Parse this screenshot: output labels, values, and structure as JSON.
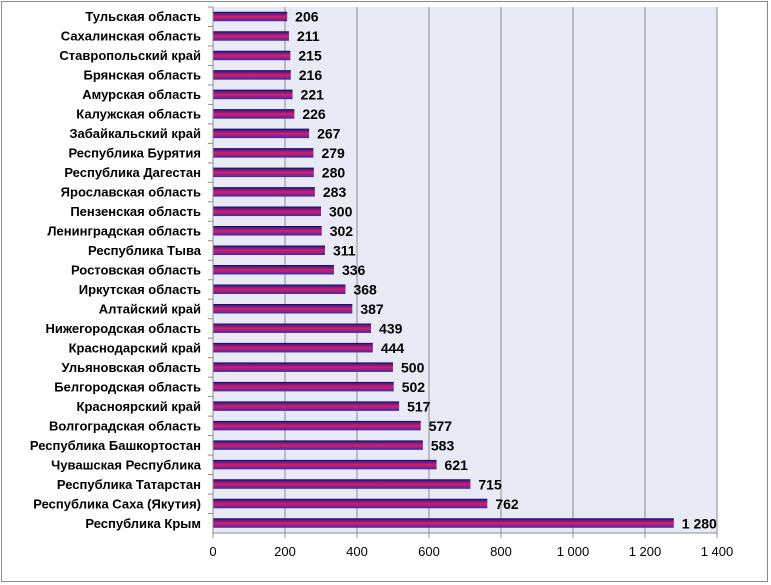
{
  "chart_data": {
    "type": "bar",
    "orientation": "horizontal",
    "title": "",
    "xlabel": "",
    "ylabel": "",
    "categories": [
      "Тульская область",
      "Сахалинская область",
      "Ставропольский край",
      "Брянская область",
      "Амурская область",
      "Калужская область",
      "Забайкальский край",
      "Республика Бурятия",
      "Республика Дагестан",
      "Ярославская область",
      "Пензенская область",
      "Ленинградская область",
      "Республика Тыва",
      "Ростовская область",
      "Иркутская область",
      "Алтайский край",
      "Нижегородская область",
      "Краснодарский край",
      "Ульяновская область",
      "Белгородская область",
      "Красноярский край",
      "Волгоградская область",
      "Республика Башкортостан",
      "Чувашская Республика",
      "Республика Татарстан",
      "Республика Саха (Якутия)",
      "Республика Крым"
    ],
    "values": [
      206,
      211,
      215,
      216,
      221,
      226,
      267,
      279,
      280,
      283,
      300,
      302,
      311,
      336,
      368,
      387,
      439,
      444,
      500,
      502,
      517,
      577,
      583,
      621,
      715,
      762,
      1280
    ],
    "value_labels": [
      "206",
      "211",
      "215",
      "216",
      "221",
      "226",
      "267",
      "279",
      "280",
      "283",
      "300",
      "302",
      "311",
      "336",
      "368",
      "387",
      "439",
      "444",
      "500",
      "502",
      "517",
      "577",
      "583",
      "621",
      "715",
      "762",
      "1 280"
    ],
    "xlim": [
      0,
      1400
    ],
    "x_ticks": [
      0,
      200,
      400,
      600,
      800,
      1000,
      1200,
      1400
    ],
    "x_tick_labels": [
      "0",
      "200",
      "400",
      "600",
      "800",
      "1 000",
      "1 200",
      "1 400"
    ],
    "grid": "vertical",
    "legend": "none",
    "colors": {
      "plot_background": "#e8ebf6",
      "gridline": "#8c8c8c",
      "bar_top": "#2a1a8c",
      "bar_middle": "#d81e6a",
      "bar_bottom": "#3b2aa8"
    }
  }
}
